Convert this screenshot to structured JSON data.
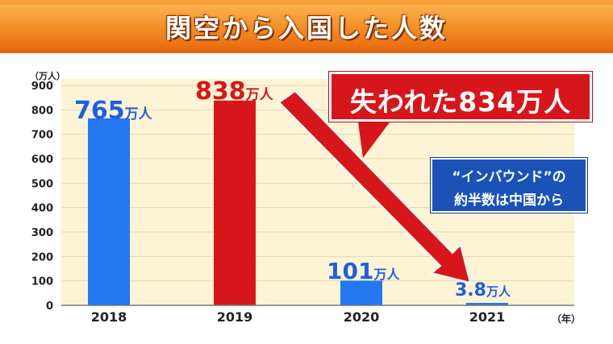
{
  "title": "関空から入国した人数",
  "y_unit": "（万人）",
  "x_unit": "（年）",
  "callout": {
    "loss": "失われた834万人",
    "note_line1": "“インバウンド”の",
    "note_line2": "約半数は中国から"
  },
  "colors": {
    "banner": "#f28a22",
    "plot_bg": "#fdf4d6",
    "grid": "#e8d7a8",
    "blue": "#2377f0",
    "red": "#d7161c",
    "label_blue": "#1e5fe0",
    "label_red": "#d7161c",
    "note_bg": "#1a52b8"
  },
  "chart_data": {
    "type": "bar",
    "title": "関空から入国した人数",
    "xlabel": "（年）",
    "ylabel": "（万人）",
    "ylim": [
      0,
      900
    ],
    "yticks": [
      0,
      100,
      200,
      300,
      400,
      500,
      600,
      700,
      800,
      900
    ],
    "categories": [
      "2018",
      "2019",
      "2020",
      "2021"
    ],
    "values": [
      765,
      838,
      101,
      3.8
    ],
    "value_labels": [
      "765",
      "838",
      "101",
      "3.8"
    ],
    "value_unit": "万人",
    "bar_colors": [
      "blue",
      "red",
      "blue",
      "blue"
    ],
    "grid": true,
    "annotations": [
      "失われた834万人",
      "“インバウンド”の",
      "約半数は中国から"
    ]
  }
}
